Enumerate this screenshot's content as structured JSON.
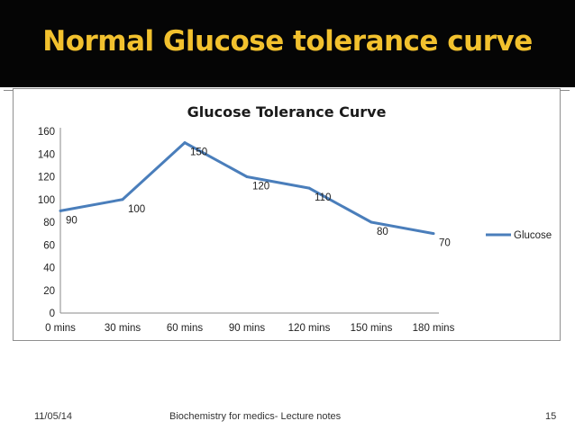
{
  "slide": {
    "title": "Normal Glucose tolerance curve",
    "footer": {
      "date": "11/05/14",
      "center": "Biochemistry for medics- Lecture notes",
      "page_number": "15"
    }
  },
  "chart_data": {
    "type": "line",
    "title": "Glucose Tolerance Curve",
    "categories": [
      "0 mins",
      "30 mins",
      "60 mins",
      "90 mins",
      "120 mins",
      "150 mins",
      "180 mins"
    ],
    "series": [
      {
        "name": "Glucose",
        "values": [
          90,
          100,
          150,
          120,
          110,
          80,
          70
        ],
        "color": "#4a7ebb"
      }
    ],
    "ylim": [
      0,
      160
    ],
    "yticks": [
      "0",
      "20",
      "40",
      "60",
      "80",
      "100",
      "120",
      "140",
      "160"
    ],
    "data_labels": [
      "90",
      "100",
      "150",
      "120",
      "110",
      "80",
      "70"
    ],
    "legend_position": "right",
    "grid": false
  }
}
